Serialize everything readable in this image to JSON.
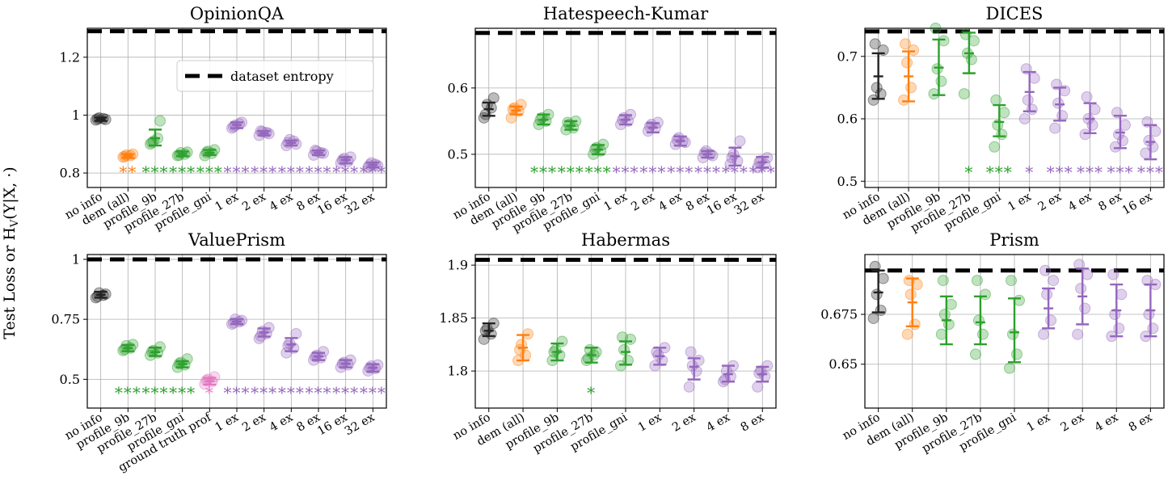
{
  "figure": {
    "ylabel": "Test Loss or H_V(Y|X,·)",
    "ylabel_main": "Test Loss or H",
    "ylabel_sub": "V",
    "ylabel_rest": "(Y|X, ·)",
    "legend_label": "dataset entropy",
    "colors": {
      "none": "#222222",
      "dem": "#ff7f0e",
      "profile": "#2ca02c",
      "gt": "#e377c2",
      "ex": "#9467bd",
      "entropy": "#000000"
    }
  },
  "chart_data": [
    {
      "type": "scatter",
      "title": "OpinionQA",
      "categories": [
        "no info",
        "dem (all)",
        "profile_9b",
        "profile_27b",
        "profile_gni",
        "1 ex",
        "2 ex",
        "4 ex",
        "8 ex",
        "16 ex",
        "32 ex"
      ],
      "groups": [
        "none",
        "dem",
        "profile",
        "profile",
        "profile",
        "ex",
        "ex",
        "ex",
        "ex",
        "ex",
        "ex"
      ],
      "ylim": [
        0.75,
        1.3
      ],
      "yticks": [
        0.8,
        1,
        1.2
      ],
      "ytick_labels": [
        "0.8",
        "1",
        "1.2"
      ],
      "entropy": 1.29,
      "means": [
        0.986,
        0.858,
        0.92,
        0.866,
        0.87,
        0.966,
        0.937,
        0.904,
        0.87,
        0.845,
        0.828
      ],
      "err_lo": [
        0.98,
        0.852,
        0.895,
        0.858,
        0.862,
        0.955,
        0.93,
        0.895,
        0.862,
        0.833,
        0.82
      ],
      "err_hi": [
        0.992,
        0.865,
        0.95,
        0.874,
        0.88,
        0.975,
        0.945,
        0.912,
        0.878,
        0.855,
        0.836
      ],
      "points": [
        [
          0.983,
          0.988,
          0.99,
          0.985,
          0.987
        ],
        [
          0.855,
          0.86,
          0.862,
          0.865,
          0.857
        ],
        [
          0.9,
          0.92,
          0.91,
          0.98,
          0.905
        ],
        [
          0.86,
          0.865,
          0.87,
          0.872,
          0.862
        ],
        [
          0.86,
          0.868,
          0.875,
          0.88,
          0.871
        ],
        [
          0.955,
          0.97,
          0.965,
          0.975,
          0.96
        ],
        [
          0.93,
          0.94,
          0.942,
          0.936,
          0.945
        ],
        [
          0.895,
          0.91,
          0.915,
          0.9,
          0.905
        ],
        [
          0.862,
          0.87,
          0.875,
          0.868,
          0.878
        ],
        [
          0.835,
          0.84,
          0.85,
          0.855,
          0.845
        ],
        [
          0.82,
          0.83,
          0.835,
          0.825,
          0.828
        ]
      ],
      "stars": [
        "",
        "**",
        "***",
        "***",
        "***",
        "***",
        "***",
        "***",
        "***",
        "***",
        "***"
      ],
      "show_legend": true
    },
    {
      "type": "scatter",
      "title": "Hatespeech-Kumar",
      "categories": [
        "no info",
        "dem (all)",
        "profile_9b",
        "profile_27b",
        "profile_gni",
        "1 ex",
        "2 ex",
        "4 ex",
        "8 ex",
        "16 ex",
        "32 ex"
      ],
      "groups": [
        "none",
        "dem",
        "profile",
        "profile",
        "profile",
        "ex",
        "ex",
        "ex",
        "ex",
        "ex",
        "ex"
      ],
      "ylim": [
        0.45,
        0.69
      ],
      "yticks": [
        0.5,
        0.6
      ],
      "ytick_labels": [
        "0.5",
        "0.6"
      ],
      "entropy": 0.683,
      "means": [
        0.568,
        0.566,
        0.552,
        0.543,
        0.507,
        0.552,
        0.54,
        0.52,
        0.5,
        0.497,
        0.488
      ],
      "err_lo": [
        0.558,
        0.56,
        0.545,
        0.537,
        0.5,
        0.545,
        0.533,
        0.513,
        0.495,
        0.483,
        0.48
      ],
      "err_hi": [
        0.578,
        0.572,
        0.56,
        0.55,
        0.514,
        0.559,
        0.547,
        0.527,
        0.505,
        0.51,
        0.496
      ],
      "points": [
        [
          0.555,
          0.57,
          0.575,
          0.585,
          0.56
        ],
        [
          0.555,
          0.565,
          0.57,
          0.575,
          0.568
        ],
        [
          0.545,
          0.55,
          0.555,
          0.56,
          0.552
        ],
        [
          0.537,
          0.54,
          0.545,
          0.55,
          0.548
        ],
        [
          0.5,
          0.505,
          0.51,
          0.515,
          0.508
        ],
        [
          0.545,
          0.55,
          0.555,
          0.56,
          0.552
        ],
        [
          0.535,
          0.54,
          0.545,
          0.548,
          0.542
        ],
        [
          0.515,
          0.52,
          0.525,
          0.518,
          0.522
        ],
        [
          0.495,
          0.5,
          0.505,
          0.498,
          0.502
        ],
        [
          0.485,
          0.49,
          0.5,
          0.52,
          0.495
        ],
        [
          0.48,
          0.485,
          0.49,
          0.495,
          0.488
        ]
      ],
      "stars": [
        "",
        "",
        "***",
        "***",
        "***",
        "***",
        "***",
        "***",
        "***",
        "***",
        "***"
      ],
      "show_legend": false
    },
    {
      "type": "scatter",
      "title": "DICES",
      "categories": [
        "no info",
        "dem (all)",
        "profile_9b",
        "profile_27b",
        "profile_gni",
        "1 ex",
        "2 ex",
        "4 ex",
        "8 ex",
        "16 ex"
      ],
      "groups": [
        "none",
        "dem",
        "profile",
        "profile",
        "profile",
        "ex",
        "ex",
        "ex",
        "ex",
        "ex"
      ],
      "ylim": [
        0.49,
        0.745
      ],
      "yticks": [
        0.5,
        0.6,
        0.7
      ],
      "ytick_labels": [
        "0.5",
        "0.6",
        "0.7"
      ],
      "entropy": 0.74,
      "means": [
        0.668,
        0.668,
        0.682,
        0.705,
        0.595,
        0.643,
        0.623,
        0.6,
        0.578,
        0.563
      ],
      "err_lo": [
        0.632,
        0.628,
        0.638,
        0.673,
        0.572,
        0.612,
        0.597,
        0.577,
        0.553,
        0.535
      ],
      "err_hi": [
        0.705,
        0.708,
        0.727,
        0.738,
        0.622,
        0.675,
        0.65,
        0.625,
        0.605,
        0.59
      ],
      "points": [
        [
          0.63,
          0.64,
          0.65,
          0.71,
          0.72
        ],
        [
          0.63,
          0.65,
          0.69,
          0.71,
          0.72
        ],
        [
          0.64,
          0.66,
          0.68,
          0.725,
          0.745
        ],
        [
          0.64,
          0.695,
          0.705,
          0.725,
          0.735
        ],
        [
          0.555,
          0.575,
          0.59,
          0.61,
          0.63
        ],
        [
          0.6,
          0.615,
          0.63,
          0.665,
          0.68
        ],
        [
          0.585,
          0.605,
          0.625,
          0.645,
          0.655
        ],
        [
          0.575,
          0.59,
          0.6,
          0.615,
          0.635
        ],
        [
          0.555,
          0.565,
          0.575,
          0.59,
          0.61
        ],
        [
          0.545,
          0.555,
          0.565,
          0.58,
          0.595
        ]
      ],
      "stars": [
        "",
        "",
        "",
        "*",
        "***",
        "*",
        "***",
        "***",
        "***",
        "***"
      ],
      "show_legend": false
    },
    {
      "type": "scatter",
      "title": "ValuePrism",
      "categories": [
        "no info",
        "profile_9b",
        "profile_27b",
        "profile_gni",
        "ground truth prof",
        "1 ex",
        "2 ex",
        "4 ex",
        "8 ex",
        "16 ex",
        "32 ex"
      ],
      "groups": [
        "none",
        "profile",
        "profile",
        "profile",
        "gt",
        "ex",
        "ex",
        "ex",
        "ex",
        "ex",
        "ex"
      ],
      "ylim": [
        0.38,
        1.02
      ],
      "yticks": [
        0.5,
        0.75,
        1
      ],
      "ytick_labels": [
        "0.5",
        "0.75",
        "1"
      ],
      "entropy": 1.0,
      "means": [
        0.852,
        0.63,
        0.613,
        0.563,
        0.492,
        0.74,
        0.695,
        0.645,
        0.595,
        0.565,
        0.548
      ],
      "err_lo": [
        0.84,
        0.617,
        0.597,
        0.55,
        0.478,
        0.73,
        0.678,
        0.617,
        0.58,
        0.55,
        0.532
      ],
      "err_hi": [
        0.865,
        0.643,
        0.632,
        0.575,
        0.506,
        0.75,
        0.712,
        0.672,
        0.61,
        0.58,
        0.563
      ],
      "points": [
        [
          0.84,
          0.85,
          0.86,
          0.855,
          0.845
        ],
        [
          0.62,
          0.63,
          0.64,
          0.645,
          0.625
        ],
        [
          0.6,
          0.61,
          0.62,
          0.635,
          0.615
        ],
        [
          0.55,
          0.56,
          0.57,
          0.585,
          0.565
        ],
        [
          0.48,
          0.49,
          0.5,
          0.51,
          0.495
        ],
        [
          0.73,
          0.74,
          0.75,
          0.745,
          0.735
        ],
        [
          0.67,
          0.69,
          0.7,
          0.715,
          0.68
        ],
        [
          0.61,
          0.63,
          0.65,
          0.69,
          0.64
        ],
        [
          0.58,
          0.59,
          0.6,
          0.615,
          0.595
        ],
        [
          0.55,
          0.56,
          0.57,
          0.58,
          0.565
        ],
        [
          0.535,
          0.545,
          0.555,
          0.56,
          0.548
        ]
      ],
      "stars": [
        "",
        "***",
        "***",
        "***",
        "*",
        "***",
        "***",
        "***",
        "***",
        "***",
        "***"
      ],
      "show_legend": false
    },
    {
      "type": "scatter",
      "title": "Habermas",
      "categories": [
        "no info",
        "dem (all)",
        "profile_9b",
        "profile_27b",
        "profile_gni",
        "1 ex",
        "2 ex",
        "4 ex",
        "8 ex"
      ],
      "groups": [
        "none",
        "dem",
        "profile",
        "profile",
        "profile",
        "ex",
        "ex",
        "ex",
        "ex"
      ],
      "ylim": [
        1.765,
        1.91
      ],
      "yticks": [
        1.8,
        1.85,
        1.9
      ],
      "ytick_labels": [
        "1.8",
        "1.85",
        "1.9"
      ],
      "entropy": 1.905,
      "means": [
        1.838,
        1.822,
        1.818,
        1.815,
        1.818,
        1.814,
        1.804,
        1.797,
        1.797
      ],
      "err_lo": [
        1.833,
        1.81,
        1.81,
        1.808,
        1.806,
        1.806,
        1.792,
        1.79,
        1.79
      ],
      "err_hi": [
        1.845,
        1.834,
        1.826,
        1.822,
        1.828,
        1.822,
        1.812,
        1.805,
        1.804
      ],
      "points": [
        [
          1.83,
          1.835,
          1.84,
          1.845,
          1.838
        ],
        [
          1.81,
          1.815,
          1.825,
          1.835,
          1.82
        ],
        [
          1.81,
          1.815,
          1.82,
          1.828,
          1.818
        ],
        [
          1.81,
          1.815,
          1.82,
          1.818,
          1.812
        ],
        [
          1.805,
          1.81,
          1.82,
          1.83,
          1.832
        ],
        [
          1.805,
          1.81,
          1.815,
          1.822,
          1.818
        ],
        [
          1.785,
          1.8,
          1.805,
          1.81,
          1.818
        ],
        [
          1.79,
          1.795,
          1.8,
          1.805,
          1.792
        ],
        [
          1.785,
          1.795,
          1.8,
          1.805,
          1.798
        ]
      ],
      "stars": [
        "",
        "",
        "",
        "*",
        "",
        "",
        "",
        "",
        ""
      ],
      "show_legend": false
    },
    {
      "type": "scatter",
      "title": "Prism",
      "categories": [
        "no info",
        "dem (all)",
        "profile_9b",
        "profile_27b",
        "profile_gni",
        "1 ex",
        "2 ex",
        "4 ex",
        "8 ex"
      ],
      "groups": [
        "none",
        "dem",
        "profile",
        "profile",
        "profile",
        "ex",
        "ex",
        "ex",
        "ex"
      ],
      "ylim": [
        0.628,
        0.705
      ],
      "yticks": [
        0.65,
        0.675
      ],
      "ytick_labels": [
        "0.65",
        "0.675"
      ],
      "entropy": 0.697,
      "means": [
        0.686,
        0.681,
        0.672,
        0.671,
        0.666,
        0.678,
        0.684,
        0.677,
        0.677
      ],
      "err_lo": [
        0.676,
        0.669,
        0.66,
        0.66,
        0.651,
        0.668,
        0.67,
        0.664,
        0.664
      ],
      "err_hi": [
        0.697,
        0.693,
        0.684,
        0.684,
        0.683,
        0.688,
        0.698,
        0.69,
        0.69
      ],
      "points": [
        [
          0.673,
          0.677,
          0.685,
          0.693,
          0.699
        ],
        [
          0.665,
          0.67,
          0.685,
          0.69,
          0.692
        ],
        [
          0.665,
          0.67,
          0.675,
          0.68,
          0.692
        ],
        [
          0.655,
          0.665,
          0.672,
          0.685,
          0.692
        ],
        [
          0.648,
          0.655,
          0.665,
          0.682,
          0.692
        ],
        [
          0.665,
          0.672,
          0.685,
          0.692,
          0.697
        ],
        [
          0.665,
          0.678,
          0.688,
          0.695,
          0.7
        ],
        [
          0.664,
          0.668,
          0.675,
          0.685,
          0.695
        ],
        [
          0.664,
          0.668,
          0.675,
          0.69,
          0.692
        ]
      ],
      "stars": [
        "",
        "",
        "",
        "",
        "",
        "",
        "",
        "",
        ""
      ],
      "show_legend": false
    }
  ]
}
